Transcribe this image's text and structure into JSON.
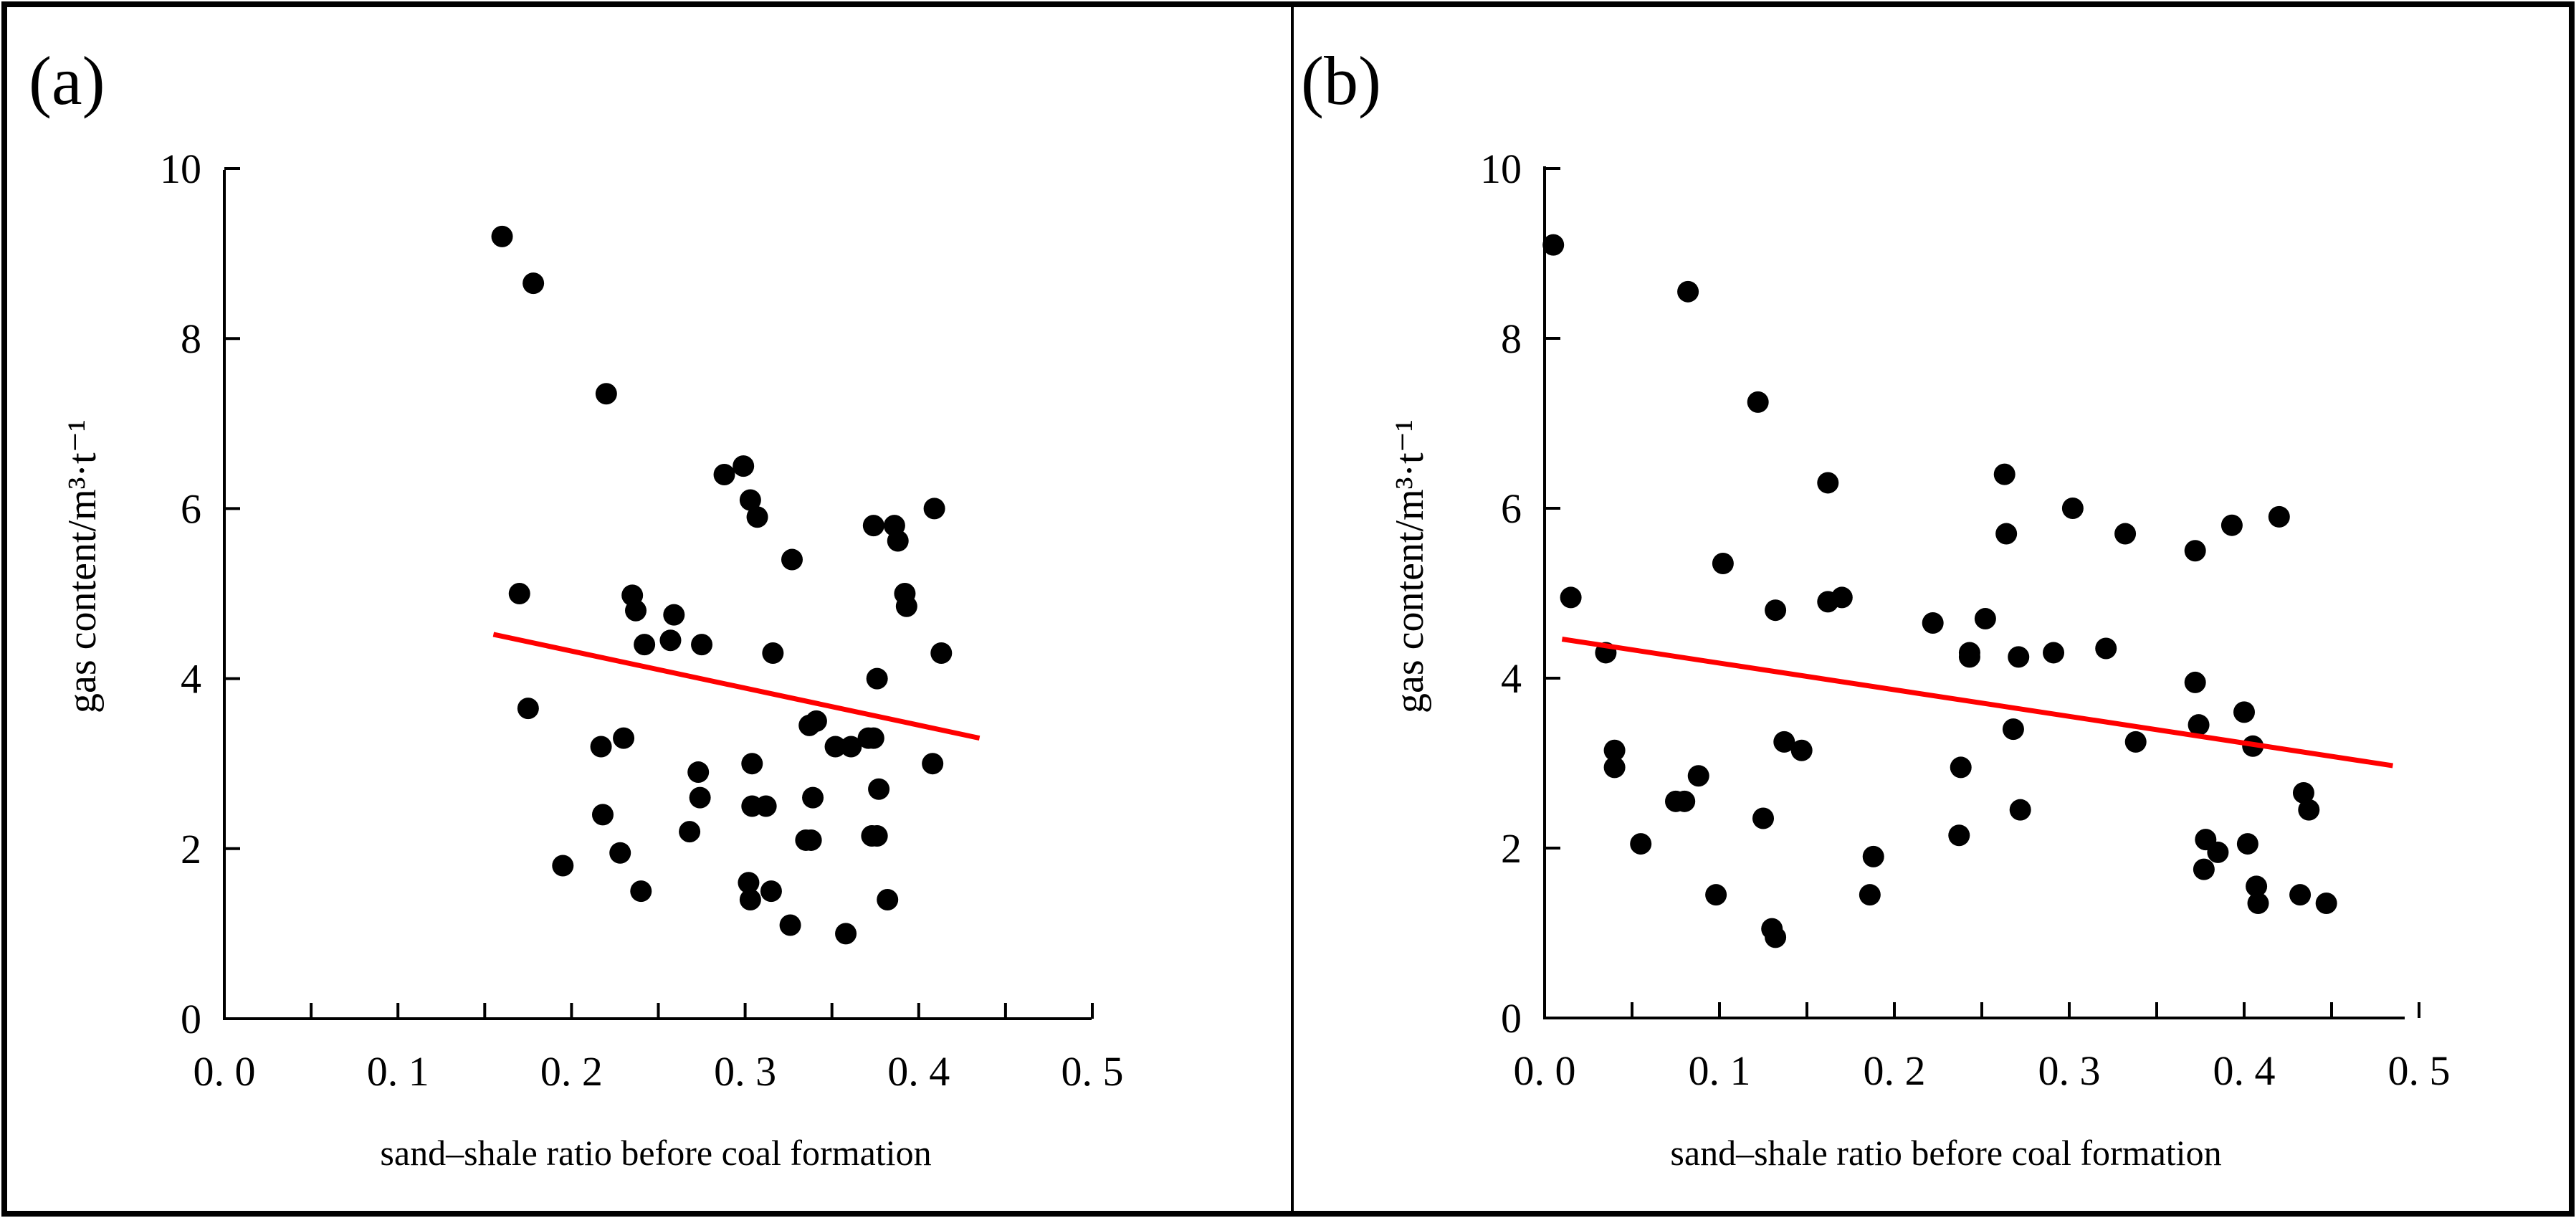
{
  "figure": {
    "border_color": "#000000",
    "background": "#ffffff"
  },
  "chart_data": [
    {
      "panel_label": "(a)",
      "type": "scatter",
      "title": "",
      "xlabel": "sand–shale ratio before coal formation",
      "ylabel": "gas content/m³·t⁻¹",
      "xlim": [
        0,
        0.5
      ],
      "ylim": [
        0,
        10
      ],
      "xticks": [
        0.0,
        0.1,
        0.2,
        0.3,
        0.4,
        0.5
      ],
      "xtick_labels": [
        "0. 0",
        "0. 1",
        "0. 2",
        "0. 3",
        "0. 4",
        "0. 5"
      ],
      "yticks": [
        0,
        2,
        4,
        6,
        8,
        10
      ],
      "ytick_labels": [
        "0",
        "2",
        "4",
        "6",
        "8",
        "10"
      ],
      "grid": false,
      "marker_color": "#000000",
      "series": [
        {
          "name": "samples",
          "x": [
            0.16,
            0.178,
            0.22,
            0.17,
            0.175,
            0.217,
            0.218,
            0.23,
            0.228,
            0.195,
            0.235,
            0.237,
            0.242,
            0.257,
            0.259,
            0.275,
            0.24,
            0.268,
            0.274,
            0.273,
            0.288,
            0.299,
            0.303,
            0.307,
            0.327,
            0.316,
            0.304,
            0.304,
            0.312,
            0.302,
            0.303,
            0.315,
            0.326,
            0.337,
            0.341,
            0.339,
            0.335,
            0.338,
            0.352,
            0.361,
            0.358,
            0.371,
            0.374,
            0.376,
            0.377,
            0.382,
            0.376,
            0.374,
            0.373,
            0.386,
            0.388,
            0.392,
            0.393,
            0.409,
            0.413,
            0.408
          ],
          "y": [
            9.2,
            8.65,
            7.35,
            5.0,
            3.65,
            3.2,
            2.4,
            3.3,
            1.95,
            1.8,
            4.98,
            4.8,
            4.4,
            4.45,
            4.75,
            4.4,
            1.5,
            2.2,
            2.6,
            2.9,
            6.4,
            6.5,
            6.1,
            5.9,
            5.4,
            4.3,
            3.0,
            2.5,
            2.5,
            1.6,
            1.4,
            1.5,
            1.1,
            3.45,
            3.5,
            2.6,
            2.1,
            2.1,
            3.2,
            3.2,
            1.0,
            3.3,
            5.8,
            4.0,
            2.7,
            1.4,
            2.15,
            3.3,
            2.15,
            5.8,
            5.62,
            5.0,
            4.85,
            6.0,
            4.3,
            3.0
          ]
        }
      ],
      "trendline": {
        "x": [
          0.155,
          0.435
        ],
        "y": [
          4.52,
          3.3
        ],
        "color": "#ff0000"
      }
    },
    {
      "panel_label": "(b)",
      "type": "scatter",
      "title": "",
      "xlabel": "sand–shale ratio before coal formation",
      "ylabel": "gas content/m³·t⁻¹",
      "xlim": [
        0,
        0.5
      ],
      "ylim": [
        0,
        10
      ],
      "xticks": [
        0.0,
        0.1,
        0.2,
        0.3,
        0.4,
        0.5
      ],
      "xtick_labels": [
        "0. 0",
        "0. 1",
        "0. 2",
        "0. 3",
        "0. 4",
        "0. 5"
      ],
      "yticks": [
        0,
        2,
        4,
        6,
        8,
        10
      ],
      "ytick_labels": [
        "0",
        "2",
        "4",
        "6",
        "8",
        "10"
      ],
      "grid": false,
      "marker_color": "#000000",
      "series": [
        {
          "name": "samples",
          "x": [
            0.005,
            0.015,
            0.035,
            0.04,
            0.04,
            0.055,
            0.075,
            0.08,
            0.082,
            0.088,
            0.098,
            0.102,
            0.122,
            0.125,
            0.13,
            0.132,
            0.132,
            0.137,
            0.147,
            0.162,
            0.162,
            0.17,
            0.186,
            0.188,
            0.222,
            0.237,
            0.238,
            0.243,
            0.243,
            0.252,
            0.263,
            0.264,
            0.268,
            0.271,
            0.272,
            0.291,
            0.302,
            0.321,
            0.332,
            0.338,
            0.372,
            0.372,
            0.374,
            0.377,
            0.378,
            0.385,
            0.393,
            0.4,
            0.402,
            0.405,
            0.407,
            0.408,
            0.42,
            0.432,
            0.434,
            0.437,
            0.447
          ],
          "y": [
            9.1,
            4.95,
            4.3,
            3.15,
            2.95,
            2.05,
            2.55,
            2.55,
            8.55,
            2.85,
            1.45,
            5.35,
            7.25,
            2.35,
            1.05,
            0.95,
            4.8,
            3.25,
            3.15,
            6.3,
            4.9,
            4.95,
            1.45,
            1.9,
            4.65,
            2.15,
            2.95,
            4.3,
            4.25,
            4.7,
            6.4,
            5.7,
            3.4,
            4.25,
            2.45,
            4.3,
            6.0,
            4.35,
            5.7,
            3.25,
            5.5,
            3.95,
            3.45,
            1.75,
            2.1,
            1.95,
            5.8,
            3.6,
            2.05,
            3.2,
            1.55,
            1.35,
            5.9,
            1.45,
            2.65,
            2.45,
            1.35
          ]
        }
      ],
      "trendline": {
        "x": [
          0.01,
          0.485
        ],
        "y": [
          4.46,
          2.97
        ],
        "color": "#ff0000"
      }
    }
  ]
}
